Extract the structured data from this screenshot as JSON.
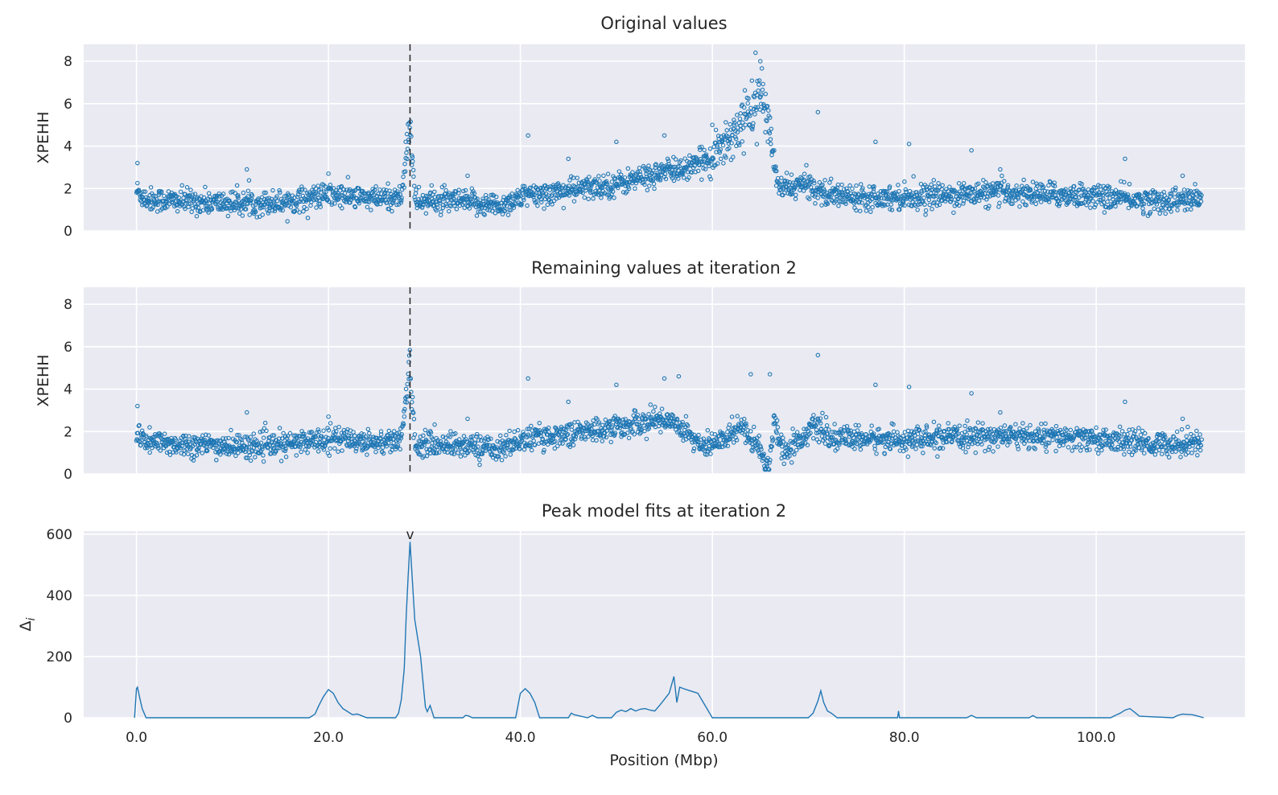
{
  "figure": {
    "xlabel": "Position (Mbp)",
    "colors": {
      "series": "#1f77b4",
      "plot_background": "#eaeaf2",
      "grid": "#ffffff",
      "marker": "#262626"
    }
  },
  "chart_data": [
    {
      "type": "scatter",
      "title": "Original values",
      "ylabel": "XPEHH",
      "xlim": [
        -5.5,
        115.5
      ],
      "ylim": [
        0,
        8.8
      ],
      "x_ticks": [
        0,
        20,
        40,
        60,
        80,
        100
      ],
      "x_tick_labels": [
        "0.0",
        "20.0",
        "40.0",
        "60.0",
        "80.0",
        "100.0"
      ],
      "show_x_tick_labels": false,
      "y_ticks": [
        0,
        2,
        4,
        6,
        8
      ],
      "y_tick_labels": [
        "0",
        "2",
        "4",
        "6",
        "8"
      ],
      "grid": true,
      "marker_open_circle": true,
      "vertical_dashed_line_x": 28.5,
      "trend_profile": [
        [
          0,
          1.9
        ],
        [
          1,
          1.5
        ],
        [
          5,
          1.4
        ],
        [
          10,
          1.3
        ],
        [
          15,
          1.35
        ],
        [
          20,
          1.7
        ],
        [
          25,
          1.5
        ],
        [
          27.6,
          1.6
        ],
        [
          28.3,
          4.5
        ],
        [
          28.5,
          5.4
        ],
        [
          29,
          1.4
        ],
        [
          33,
          1.4
        ],
        [
          38,
          1.2
        ],
        [
          40,
          1.6
        ],
        [
          45,
          1.9
        ],
        [
          50,
          2.2
        ],
        [
          55,
          2.8
        ],
        [
          58,
          3.0
        ],
        [
          60,
          3.6
        ],
        [
          62,
          4.5
        ],
        [
          64,
          5.6
        ],
        [
          65,
          6.5
        ],
        [
          66,
          4.8
        ],
        [
          66.8,
          2.0
        ],
        [
          70,
          2.2
        ],
        [
          72,
          1.7
        ],
        [
          80,
          1.6
        ],
        [
          90,
          1.8
        ],
        [
          100,
          1.65
        ],
        [
          106,
          1.4
        ],
        [
          111,
          1.5
        ]
      ],
      "outliers": [
        [
          0.1,
          3.2
        ],
        [
          11.5,
          2.9
        ],
        [
          20,
          2.7
        ],
        [
          34.5,
          2.6
        ],
        [
          40.8,
          4.5
        ],
        [
          45,
          3.4
        ],
        [
          50,
          4.2
        ],
        [
          55,
          4.5
        ],
        [
          60,
          5.0
        ],
        [
          64.5,
          8.4
        ],
        [
          65,
          8.0
        ],
        [
          71,
          5.6
        ],
        [
          77,
          4.2
        ],
        [
          80.5,
          4.1
        ],
        [
          87,
          3.8
        ],
        [
          90,
          2.9
        ],
        [
          103,
          3.4
        ],
        [
          109,
          2.6
        ]
      ]
    },
    {
      "type": "scatter",
      "title": "Remaining values at iteration 2",
      "ylabel": "XPEHH",
      "xlim": [
        -5.5,
        115.5
      ],
      "ylim": [
        0,
        8.8
      ],
      "x_ticks": [
        0,
        20,
        40,
        60,
        80,
        100
      ],
      "x_tick_labels": [
        "0.0",
        "20.0",
        "40.0",
        "60.0",
        "80.0",
        "100.0"
      ],
      "show_x_tick_labels": false,
      "y_ticks": [
        0,
        2,
        4,
        6,
        8
      ],
      "y_tick_labels": [
        "0",
        "2",
        "4",
        "6",
        "8"
      ],
      "grid": true,
      "marker_open_circle": true,
      "vertical_dashed_line_x": 28.5,
      "trend_profile": [
        [
          0,
          1.9
        ],
        [
          1,
          1.5
        ],
        [
          5,
          1.4
        ],
        [
          10,
          1.3
        ],
        [
          15,
          1.35
        ],
        [
          20,
          1.7
        ],
        [
          25,
          1.5
        ],
        [
          27.6,
          1.6
        ],
        [
          28.3,
          4.5
        ],
        [
          28.5,
          5.4
        ],
        [
          29,
          1.4
        ],
        [
          33,
          1.4
        ],
        [
          38,
          1.2
        ],
        [
          40,
          1.6
        ],
        [
          45,
          1.9
        ],
        [
          50,
          2.2
        ],
        [
          55,
          2.6
        ],
        [
          57,
          2.2
        ],
        [
          59,
          1.2
        ],
        [
          61,
          1.6
        ],
        [
          63,
          2.3
        ],
        [
          65,
          1.2
        ],
        [
          65.8,
          0.2
        ],
        [
          66.5,
          2.5
        ],
        [
          67.5,
          1.0
        ],
        [
          69,
          1.6
        ],
        [
          71,
          2.3
        ],
        [
          72,
          1.7
        ],
        [
          80,
          1.6
        ],
        [
          90,
          1.8
        ],
        [
          100,
          1.65
        ],
        [
          106,
          1.4
        ],
        [
          111,
          1.5
        ]
      ],
      "outliers": [
        [
          0.1,
          3.2
        ],
        [
          11.5,
          2.9
        ],
        [
          20,
          2.7
        ],
        [
          34.5,
          2.6
        ],
        [
          40.8,
          4.5
        ],
        [
          45,
          3.4
        ],
        [
          50,
          4.2
        ],
        [
          55,
          4.5
        ],
        [
          56.5,
          4.6
        ],
        [
          64,
          4.7
        ],
        [
          66,
          4.7
        ],
        [
          71,
          5.6
        ],
        [
          77,
          4.2
        ],
        [
          80.5,
          4.1
        ],
        [
          87,
          3.8
        ],
        [
          90,
          2.9
        ],
        [
          103,
          3.4
        ],
        [
          109,
          2.6
        ]
      ]
    },
    {
      "type": "line",
      "title": "Peak model fits at iteration 2",
      "ylabel": "Δ_i",
      "xlabel": "Position (Mbp)",
      "xlim": [
        -5.5,
        115.5
      ],
      "ylim": [
        0,
        610
      ],
      "x_ticks": [
        0,
        20,
        40,
        60,
        80,
        100
      ],
      "x_tick_labels": [
        "0.0",
        "20.0",
        "40.0",
        "60.0",
        "80.0",
        "100.0"
      ],
      "show_x_tick_labels": true,
      "y_ticks": [
        0,
        200,
        400,
        600
      ],
      "y_tick_labels": [
        "0",
        "200",
        "400",
        "600"
      ],
      "grid": true,
      "peak_marker": {
        "x": 28.5,
        "y": 600,
        "label": "v"
      },
      "x": [
        -0.2,
        0.0,
        0.1,
        0.3,
        0.6,
        1.0,
        18.0,
        18.6,
        19.0,
        19.5,
        20.0,
        20.5,
        21.0,
        21.5,
        22.0,
        22.5,
        23.0,
        23.5,
        24.0,
        27.0,
        27.3,
        27.6,
        27.9,
        28.1,
        28.3,
        28.5,
        28.7,
        29.0,
        29.3,
        29.6,
        29.9,
        30.1,
        30.3,
        30.6,
        31.0,
        34.0,
        34.3,
        34.6,
        35.0,
        39.5,
        40.0,
        40.5,
        41.0,
        41.5,
        42.0,
        45.0,
        45.3,
        45.6,
        47.0,
        47.5,
        48.0,
        49.5,
        50.0,
        50.5,
        51.0,
        51.5,
        52.0,
        52.5,
        53.0,
        53.5,
        54.0,
        54.5,
        55.0,
        55.5,
        56.0,
        56.3,
        56.6,
        57.0,
        57.5,
        58.0,
        58.5,
        60.0,
        68.0,
        70.0,
        70.5,
        71.0,
        71.3,
        71.6,
        72.0,
        72.4,
        73.0,
        79.3,
        79.4,
        79.5,
        79.6,
        86.5,
        87.0,
        87.5,
        93.0,
        93.4,
        93.8,
        101.5,
        102.0,
        102.5,
        103.0,
        103.5,
        104.0,
        104.5,
        108.0,
        108.5,
        109.0,
        110.0,
        110.5,
        111.2
      ],
      "y": [
        0,
        95,
        100,
        70,
        30,
        0,
        0,
        12,
        40,
        70,
        92,
        80,
        50,
        30,
        20,
        10,
        12,
        6,
        0,
        0,
        15,
        60,
        160,
        330,
        460,
        575,
        470,
        320,
        260,
        200,
        100,
        35,
        20,
        40,
        0,
        0,
        8,
        6,
        0,
        0,
        80,
        95,
        80,
        50,
        0,
        0,
        15,
        10,
        0,
        8,
        0,
        0,
        18,
        25,
        20,
        30,
        22,
        28,
        30,
        25,
        22,
        40,
        60,
        80,
        135,
        50,
        100,
        95,
        90,
        85,
        80,
        0,
        0,
        0,
        15,
        55,
        88,
        50,
        22,
        15,
        0,
        0,
        22,
        0,
        0,
        0,
        8,
        0,
        0,
        7,
        0,
        0,
        8,
        15,
        25,
        30,
        18,
        5,
        0,
        8,
        12,
        10,
        6,
        0
      ]
    }
  ]
}
